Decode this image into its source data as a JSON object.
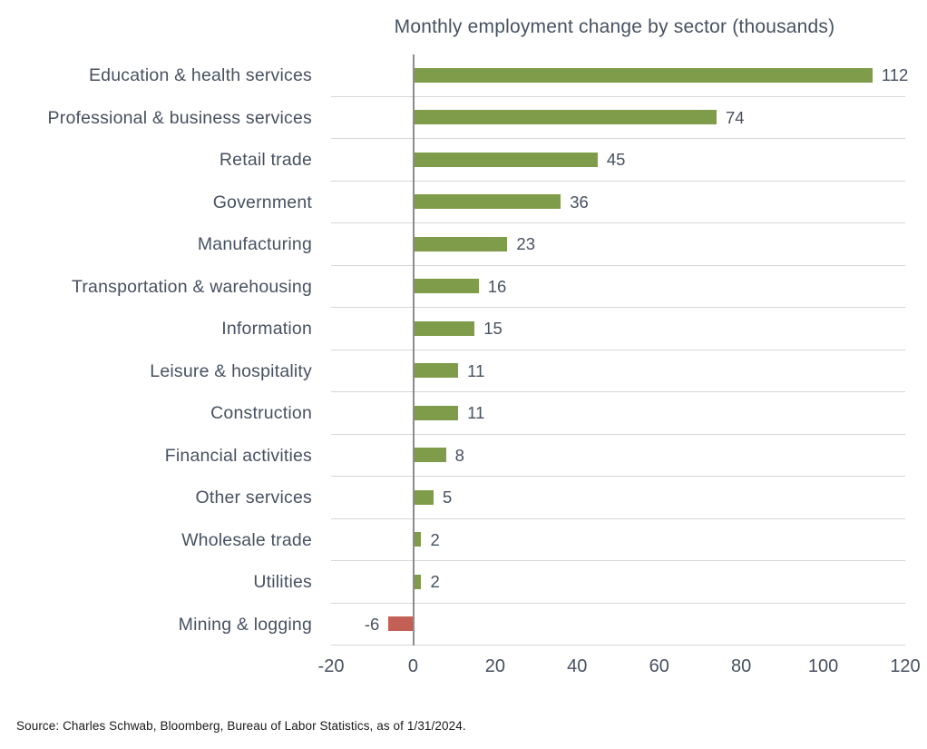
{
  "chart_data": {
    "type": "bar",
    "orientation": "horizontal",
    "title": "Monthly employment change by sector (thousands)",
    "categories": [
      "Education & health services",
      "Professional & business services",
      "Retail trade",
      "Government",
      "Manufacturing",
      "Transportation & warehousing",
      "Information",
      "Leisure & hospitality",
      "Construction",
      "Financial activities",
      "Other services",
      "Wholesale trade",
      "Utilities",
      "Mining & logging"
    ],
    "values": [
      112,
      74,
      45,
      36,
      23,
      16,
      15,
      11,
      11,
      8,
      5,
      2,
      2,
      -6
    ],
    "xlim": [
      -20,
      120
    ],
    "xticks": [
      -20,
      0,
      20,
      40,
      60,
      80,
      100,
      120
    ],
    "grid": "horizontal-row-separators",
    "legend": "none",
    "colors": {
      "positive": "#7e9c49",
      "negative": "#c45f55",
      "text": "#475160",
      "gridline": "#d6d6d6",
      "zero_line": "#8c8c8c"
    }
  },
  "footer": {
    "source": "Source: Charles Schwab, Bloomberg, Bureau of Labor Statistics, as of 1/31/2024."
  }
}
